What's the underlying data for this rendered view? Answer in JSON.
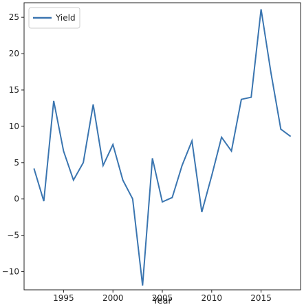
{
  "chart_data": {
    "type": "line",
    "title": "",
    "xlabel": "Year",
    "ylabel": "",
    "xlim": [
      1991,
      2019
    ],
    "ylim": [
      -12.5,
      27
    ],
    "xticks": [
      1995,
      2000,
      2005,
      2010,
      2015
    ],
    "yticks": [
      -10,
      -5,
      0,
      5,
      10,
      15,
      20,
      25
    ],
    "ytick_labels": [
      "−10",
      "−5",
      "0",
      "5",
      "10",
      "15",
      "20",
      "25"
    ],
    "grid": false,
    "legend_position": "top-left",
    "series": [
      {
        "name": "Yield",
        "color": "#3a75b0",
        "x": [
          1992,
          1993,
          1994,
          1995,
          1996,
          1997,
          1998,
          1999,
          2000,
          2001,
          2002,
          2003,
          2004,
          2005,
          2006,
          2007,
          2008,
          2009,
          2010,
          2011,
          2012,
          2013,
          2014,
          2015,
          2016,
          2017,
          2018
        ],
        "y": [
          4.2,
          -0.3,
          13.5,
          6.6,
          2.6,
          5.0,
          13.0,
          4.6,
          7.5,
          2.6,
          0.0,
          -11.9,
          5.6,
          -0.4,
          0.2,
          4.6,
          8.0,
          -1.8,
          3.2,
          8.5,
          6.6,
          13.7,
          14.0,
          26.1,
          17.4,
          9.6,
          8.6
        ]
      }
    ]
  }
}
